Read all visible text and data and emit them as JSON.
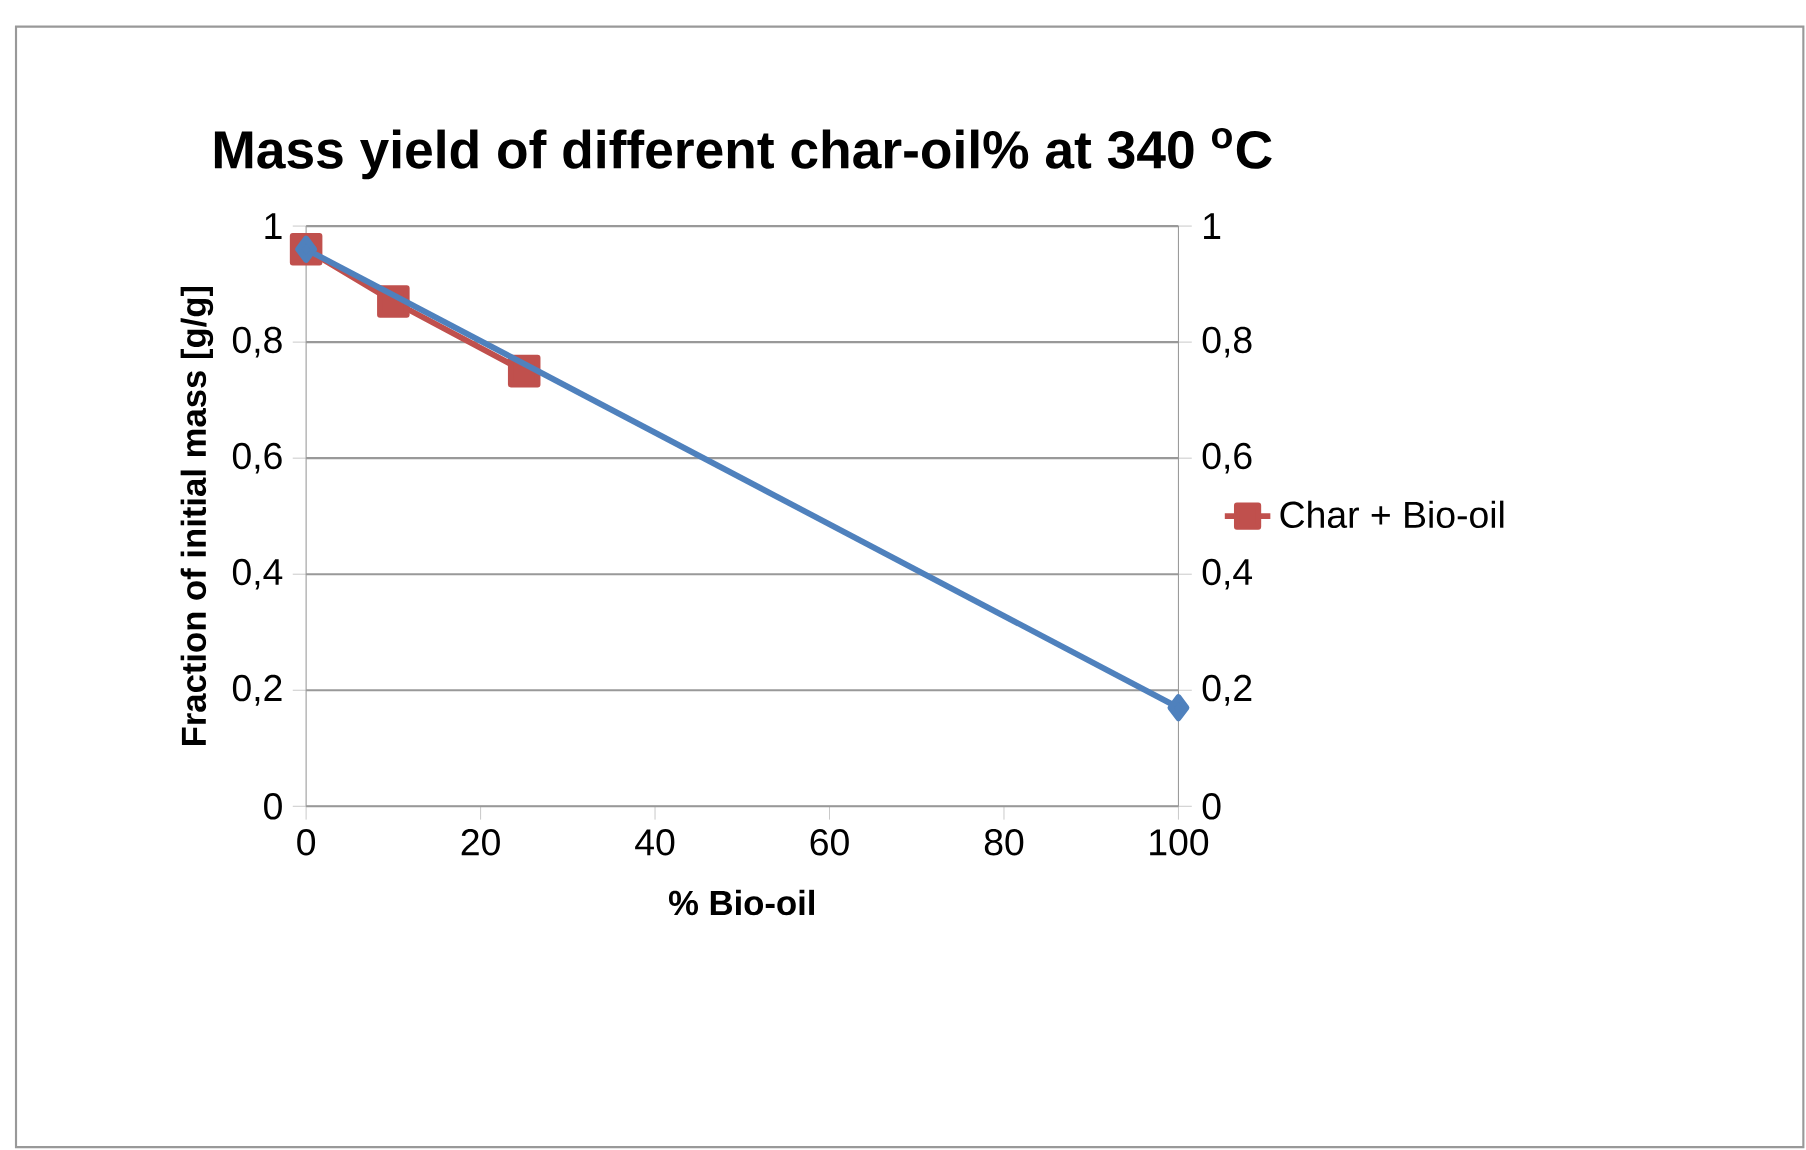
{
  "chart_data": {
    "type": "line",
    "title": "Mass yield of different char-oil% at 340 $^{o}$C",
    "xlabel": "% Bio-oil",
    "ylabel": "Fraction of initial mass [g/g]",
    "series": [
      {
        "name": "Char + Bio-oil",
        "color": "#c0504d",
        "x": [
          0,
          10,
          25
        ],
        "values": [
          0.96,
          0.87,
          0.75
        ],
        "marker": "square"
      },
      {
        "color": "#4f81bd",
        "x": [
          0,
          100
        ],
        "values": [
          0.96,
          0.17
        ],
        "marker": "diamond",
        "axis": "y2"
      }
    ],
    "xlim": [
      0,
      100
    ],
    "xticks": [
      0,
      20,
      40,
      60,
      80,
      100
    ],
    "ylim": [
      0,
      1
    ],
    "yticks": [
      0,
      {
        "value": 0.2,
        "label": "0,2"
      },
      {
        "value": 0.4,
        "label": "0,4"
      },
      {
        "value": 0.6,
        "label": "0,6"
      },
      {
        "value": 0.8,
        "label": "0,8"
      },
      1
    ],
    "y2lim": [
      0,
      1
    ],
    "y2ticks": [
      0,
      {
        "value": 0.2,
        "label": "0,2"
      },
      {
        "value": 0.4,
        "label": "0,4"
      },
      {
        "value": 0.6,
        "label": "0,6"
      },
      {
        "value": 0.8,
        "label": "0,8"
      },
      1
    ],
    "grid": "y",
    "legend": "right",
    "line_style": "solid"
  }
}
